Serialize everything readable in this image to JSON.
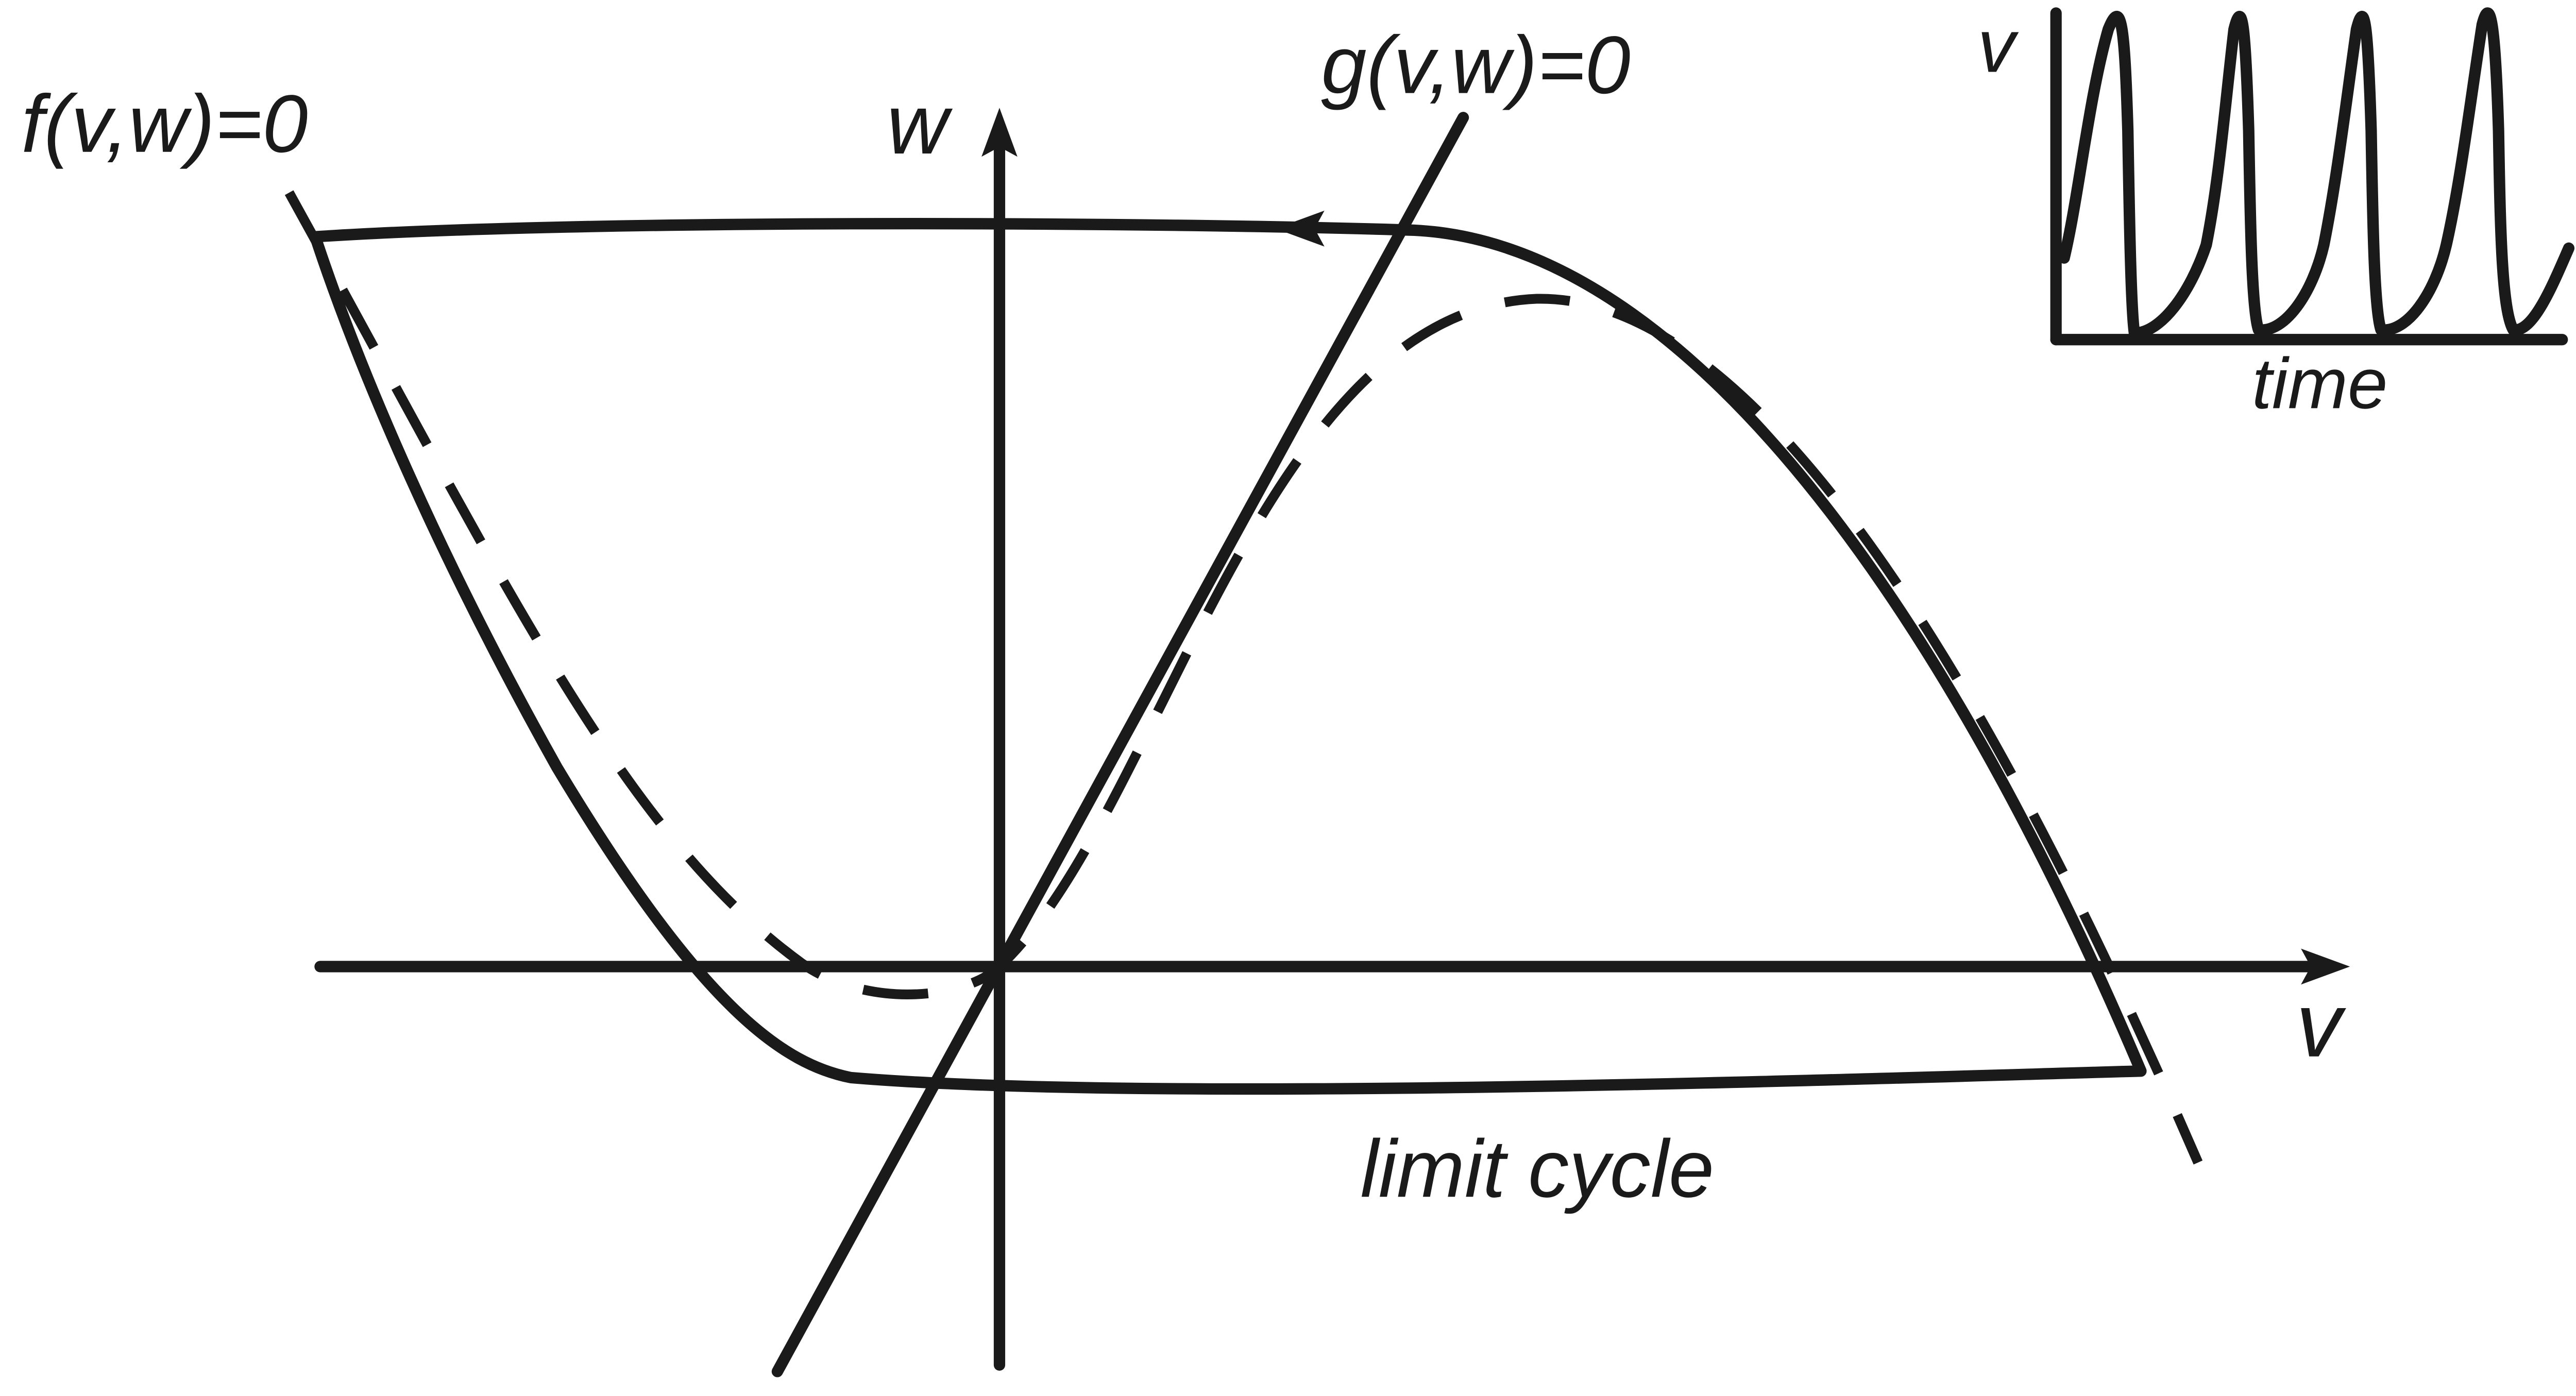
{
  "labels": {
    "f_nullcline": "f(v,w)=0",
    "g_nullcline": "g(v,w)=0",
    "w_axis": "w",
    "v_axis": "v",
    "limit_cycle": "limit cycle",
    "inset_v": "v",
    "inset_time": "time"
  },
  "colors": {
    "ink": "#1a1a1a",
    "background": "#ffffff"
  },
  "icons": {
    "trajectory_direction": "arrowhead-left-icon"
  }
}
